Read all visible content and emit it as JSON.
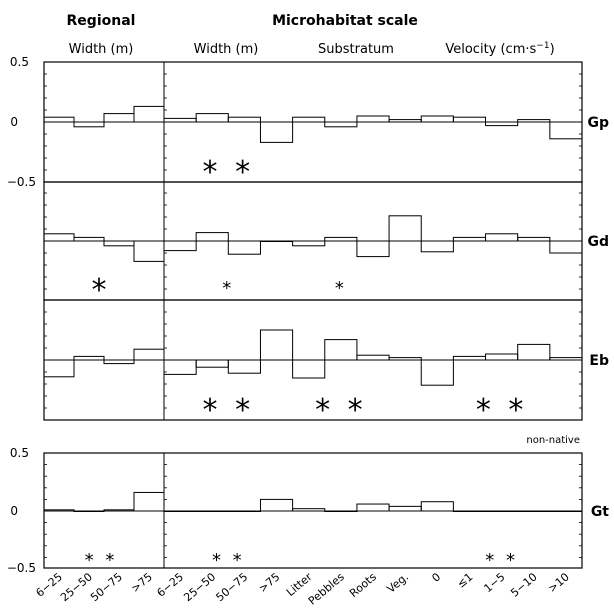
{
  "headers": {
    "regional": "Regional",
    "microhabitat": "Microhabitat scale",
    "width_regional": "Width (m)",
    "width_micro": "Width (m)",
    "substratum": "Substratum",
    "velocity": "Velocity (cm·s",
    "velocity_exp": "−1",
    "velocity_close": ")"
  },
  "non_native_note": "non-native",
  "y_ticks_top": [
    "0.5",
    "0",
    "−0.5"
  ],
  "y_ticks_bottom": [
    "0.5",
    "0",
    "−0.5"
  ],
  "categories": {
    "regional": [
      "6−25",
      "25−50",
      "50−75",
      ">75"
    ],
    "micro": [
      "6−25",
      "25−50",
      "50−75",
      ">75",
      "Litter",
      "Pebbles",
      "Roots",
      "Veg.",
      "0",
      "≤1",
      "1−5",
      "5−10",
      ">10"
    ]
  },
  "chart_data": {
    "type": "bar",
    "style": "stepped histogram bars from a zero baseline",
    "ylim": [
      -0.5,
      0.5
    ],
    "panels": [
      {
        "species": "Gp",
        "regional": [
          0.04,
          -0.04,
          0.07,
          0.13
        ],
        "micro": [
          0.03,
          0.07,
          0.04,
          -0.17,
          0.04,
          -0.04,
          0.05,
          0.02,
          0.05,
          0.04,
          -0.03,
          0.02,
          -0.14
        ],
        "significance": {
          "regional": "",
          "width": "**",
          "substratum": "",
          "velocity": ""
        }
      },
      {
        "species": "Gd",
        "regional": [
          0.06,
          0.03,
          -0.04,
          -0.17
        ],
        "micro": [
          -0.08,
          0.07,
          -0.11,
          0.0,
          -0.04,
          0.03,
          -0.13,
          0.21,
          -0.09,
          0.03,
          0.06,
          0.03,
          -0.1
        ],
        "significance": {
          "regional": "*",
          "width": "*",
          "substratum": "*",
          "velocity": ""
        }
      },
      {
        "species": "Eb",
        "regional": [
          -0.14,
          0.03,
          -0.03,
          0.09
        ],
        "micro": [
          -0.12,
          -0.06,
          -0.11,
          0.25,
          -0.15,
          0.17,
          0.04,
          0.02,
          -0.21,
          0.03,
          0.05,
          0.13,
          0.02
        ],
        "significance": {
          "regional": "",
          "width": "**",
          "substratum": "**",
          "velocity": "**"
        }
      },
      {
        "species": "Gt",
        "regional": [
          0.01,
          0.0,
          0.01,
          0.16
        ],
        "micro": [
          0.0,
          0.0,
          0.0,
          0.1,
          0.02,
          0.0,
          0.06,
          0.04,
          0.08,
          0.0,
          0.0,
          0.0,
          0.0
        ],
        "significance": {
          "regional": "**",
          "width": "**",
          "substratum": "",
          "velocity": "**"
        }
      }
    ]
  }
}
